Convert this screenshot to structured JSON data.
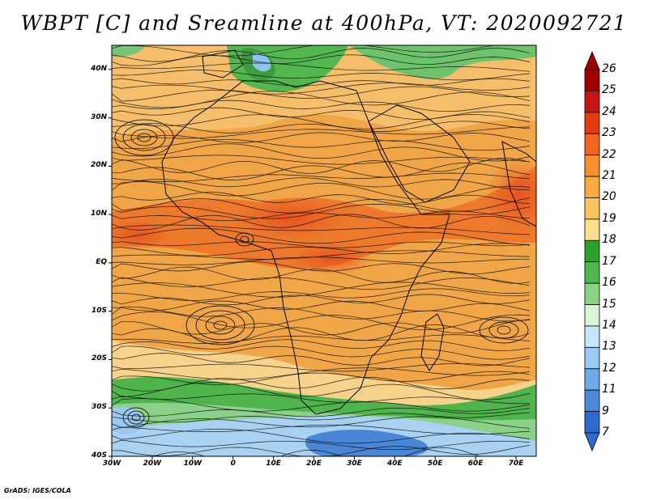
{
  "title": "WBPT [C] and Sreamline at 400hPa, VT: 2020092721",
  "credit": "GrADS: IGES/COLA",
  "map": {
    "lon_range": [
      -30,
      75
    ],
    "lat_range": [
      -40,
      45
    ],
    "lat_ticks": [
      {
        "value": 40,
        "label": "40N"
      },
      {
        "value": 30,
        "label": "30N"
      },
      {
        "value": 20,
        "label": "20N"
      },
      {
        "value": 10,
        "label": "10N"
      },
      {
        "value": 0,
        "label": "EQ"
      },
      {
        "value": -10,
        "label": "10S"
      },
      {
        "value": -20,
        "label": "20S"
      },
      {
        "value": -30,
        "label": "30S"
      },
      {
        "value": -40,
        "label": "40S"
      }
    ],
    "lon_ticks": [
      {
        "value": -30,
        "label": "30W"
      },
      {
        "value": -20,
        "label": "20W"
      },
      {
        "value": -10,
        "label": "10W"
      },
      {
        "value": 0,
        "label": "0"
      },
      {
        "value": 10,
        "label": "10E"
      },
      {
        "value": 20,
        "label": "20E"
      },
      {
        "value": 30,
        "label": "30E"
      },
      {
        "value": 40,
        "label": "40E"
      },
      {
        "value": 50,
        "label": "50E"
      },
      {
        "value": 60,
        "label": "60E"
      },
      {
        "value": 70,
        "label": "70E"
      }
    ]
  },
  "colorbar": {
    "labels": [
      "26",
      "25",
      "24",
      "23",
      "22",
      "21",
      "20",
      "19",
      "18",
      "17",
      "16",
      "15",
      "14",
      "13",
      "12",
      "11",
      "9",
      "7"
    ],
    "colors": [
      "#a00000",
      "#c81414",
      "#e63c0c",
      "#f5641e",
      "#f7902a",
      "#f8ab3c",
      "#f9c45a",
      "#fbe08c",
      "#2ea02e",
      "#4eb84e",
      "#86d386",
      "#d8f5d8",
      "#c8e6fb",
      "#9ccaf2",
      "#6eaae6",
      "#4a8ad8",
      "#2d6bd0"
    ]
  }
}
